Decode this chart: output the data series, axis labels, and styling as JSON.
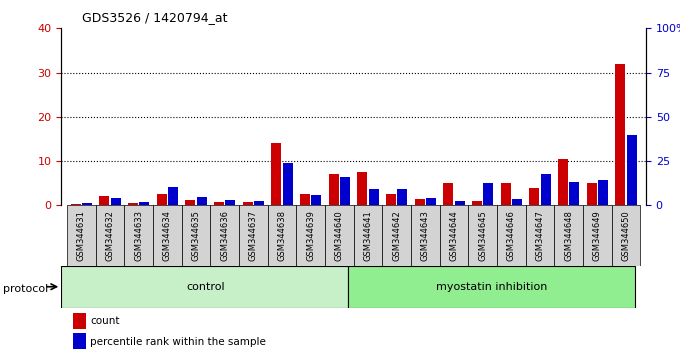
{
  "title": "GDS3526 / 1420794_at",
  "samples": [
    "GSM344631",
    "GSM344632",
    "GSM344633",
    "GSM344634",
    "GSM344635",
    "GSM344636",
    "GSM344637",
    "GSM344638",
    "GSM344639",
    "GSM344640",
    "GSM344641",
    "GSM344642",
    "GSM344643",
    "GSM344644",
    "GSM344645",
    "GSM344646",
    "GSM344647",
    "GSM344648",
    "GSM344649",
    "GSM344650"
  ],
  "count_values": [
    0.3,
    2.0,
    0.5,
    2.5,
    1.2,
    0.8,
    0.8,
    14.0,
    2.5,
    7.0,
    7.5,
    2.5,
    1.5,
    5.0,
    1.0,
    5.0,
    4.0,
    10.5,
    5.0,
    32.0
  ],
  "percentile_values": [
    1.5,
    4.0,
    2.0,
    10.5,
    4.5,
    3.0,
    2.5,
    24.0,
    6.0,
    16.0,
    9.5,
    9.0,
    4.0,
    2.5,
    12.5,
    3.5,
    17.5,
    13.0,
    14.5,
    40.0
  ],
  "count_color": "#cc0000",
  "percentile_color": "#0000cc",
  "bg_plot": "#ffffff",
  "bg_label": "#d3d3d3",
  "control_color": "#c8f0c8",
  "myostatin_color": "#90ee90",
  "control_label": "control",
  "myostatin_label": "myostatin inhibition",
  "protocol_label": "protocol",
  "legend_count": "count",
  "legend_percentile": "percentile rank within the sample",
  "left_ylim": [
    0,
    40
  ],
  "right_ylim": [
    0,
    100
  ],
  "left_yticks": [
    0,
    10,
    20,
    30,
    40
  ],
  "right_yticks": [
    0,
    25,
    50,
    75,
    100
  ],
  "right_yticklabels": [
    "0",
    "25",
    "50",
    "75",
    "100%"
  ],
  "control_count": 10,
  "bar_width": 0.35,
  "bar_gap": 0.05
}
